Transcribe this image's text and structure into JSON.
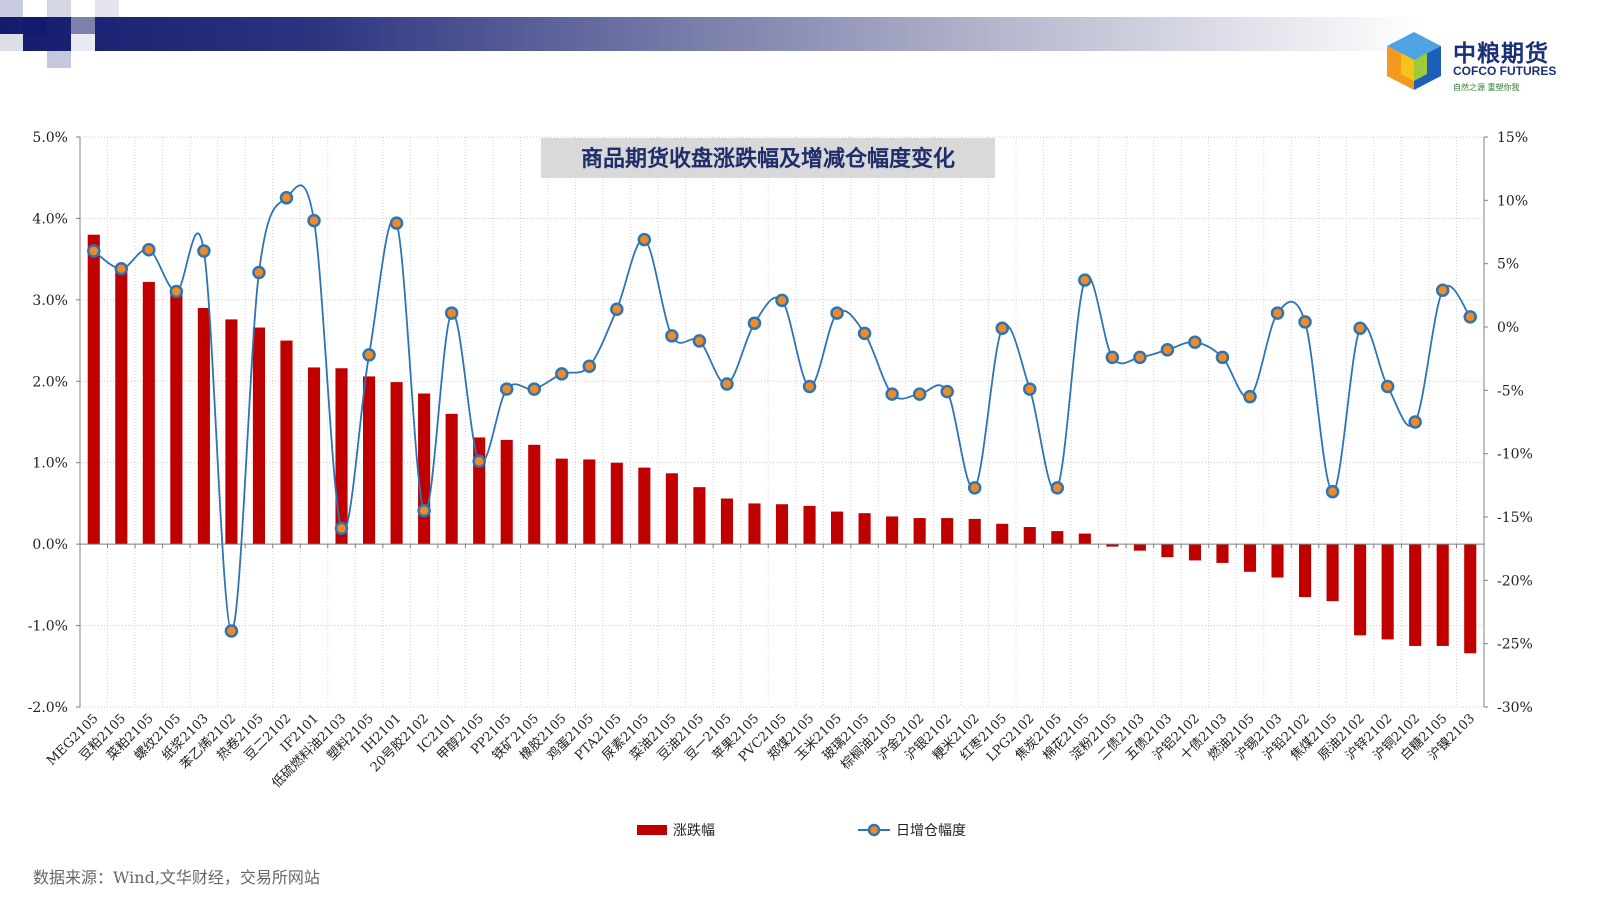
{
  "brand": {
    "name_cn": "中粮期货",
    "name_en": "COFCO FUTURES",
    "tagline": "自然之源 重塑你我"
  },
  "source_note": "数据来源：Wind,文华财经，交易所网站",
  "colors": {
    "bar": "#c00000",
    "line": "#2e74b5",
    "marker_fill": "#f08a24",
    "title_bg": "#d9d9d9",
    "title_text": "#1f2d6b"
  },
  "chart_data": {
    "type": "bar",
    "title": "商品期货收盘涨跌幅及增减仓幅度变化",
    "categories": [
      "MEG2105",
      "豆粕2105",
      "菜粕2105",
      "螺纹2105",
      "纸浆2103",
      "苯乙烯2102",
      "热卷2105",
      "豆二2102",
      "IF2101",
      "低硫燃料油2103",
      "塑料2105",
      "IH2101",
      "20号胶2102",
      "IC2101",
      "甲醇2105",
      "PP2105",
      "铁矿2105",
      "橡胶2105",
      "鸡蛋2105",
      "PTA2105",
      "尿素2105",
      "菜油2105",
      "豆油2105",
      "豆一2105",
      "苹果2105",
      "PVC2105",
      "郑煤2105",
      "玉米2105",
      "玻璃2105",
      "棕榈油2105",
      "沪金2102",
      "沪银2102",
      "粳米2102",
      "红枣2105",
      "LPG2102",
      "焦炭2105",
      "棉花2105",
      "淀粉2105",
      "二债2103",
      "五债2103",
      "沪铝2102",
      "十债2103",
      "燃油2105",
      "沪锡2103",
      "沪铅2102",
      "焦煤2105",
      "原油2102",
      "沪锌2102",
      "沪铜2102",
      "白糖2105",
      "沪镍2103"
    ],
    "series": [
      {
        "name": "涨跌幅",
        "type": "bar",
        "axis": "left",
        "values": [
          3.8,
          3.42,
          3.22,
          3.11,
          2.9,
          2.76,
          2.66,
          2.5,
          2.17,
          2.16,
          2.06,
          1.99,
          1.85,
          1.6,
          1.31,
          1.28,
          1.22,
          1.05,
          1.04,
          1.0,
          0.94,
          0.87,
          0.7,
          0.56,
          0.5,
          0.49,
          0.47,
          0.4,
          0.38,
          0.34,
          0.32,
          0.32,
          0.31,
          0.25,
          0.21,
          0.16,
          0.13,
          -0.03,
          -0.08,
          -0.16,
          -0.2,
          -0.23,
          -0.34,
          -0.41,
          -0.65,
          -0.7,
          -1.12,
          -1.17,
          -1.25,
          -1.25,
          -1.34
        ]
      },
      {
        "name": "日增仓幅度",
        "type": "line",
        "axis": "right",
        "values": [
          6.0,
          4.6,
          6.1,
          2.8,
          6.0,
          -24.0,
          4.3,
          10.2,
          8.4,
          -15.9,
          -2.2,
          8.2,
          -14.5,
          1.1,
          -10.6,
          -4.9,
          -4.9,
          -3.7,
          -3.1,
          1.4,
          6.9,
          -0.7,
          -1.1,
          -4.5,
          0.3,
          2.1,
          -4.7,
          1.1,
          -0.5,
          -5.3,
          -5.3,
          -5.1,
          -12.7,
          -0.1,
          -4.9,
          -12.7,
          3.7,
          -2.4,
          -2.4,
          -1.8,
          -1.2,
          -2.4,
          -5.5,
          1.1,
          0.4,
          -13.0,
          -0.1,
          -4.7,
          -7.5,
          2.9,
          0.8
        ]
      }
    ],
    "y_left": {
      "lim": [
        -2.0,
        5.0
      ],
      "ticks": [
        "-2.0%",
        "-1.0%",
        "0.0%",
        "1.0%",
        "2.0%",
        "3.0%",
        "4.0%",
        "5.0%"
      ]
    },
    "y_right": {
      "lim": [
        -30,
        15
      ],
      "ticks": [
        "-30%",
        "-25%",
        "-20%",
        "-15%",
        "-10%",
        "-5%",
        "0%",
        "5%",
        "10%",
        "15%"
      ]
    },
    "grid": true,
    "legend": "bottom-center"
  }
}
